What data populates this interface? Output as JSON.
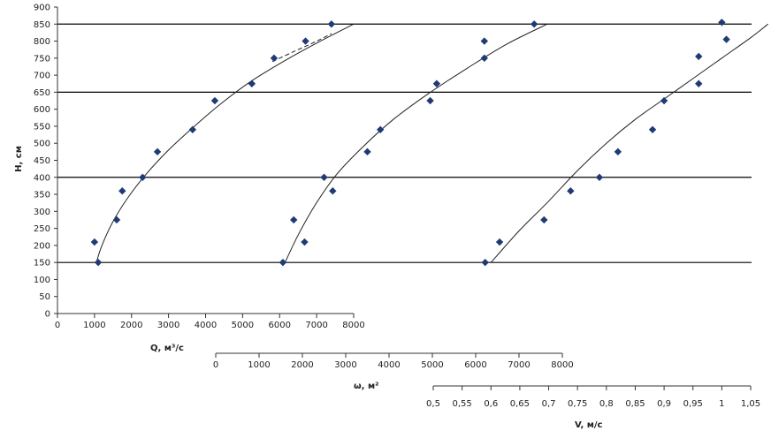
{
  "chart_data": {
    "type": "scatter",
    "y_axis": {
      "label": "H, см",
      "min": 0,
      "max": 900,
      "step": 50,
      "ticks": [
        "0",
        "50",
        "100",
        "150",
        "200",
        "250",
        "300",
        "350",
        "400",
        "450",
        "500",
        "550",
        "600",
        "650",
        "700",
        "750",
        "800",
        "850",
        "900"
      ]
    },
    "horizontal_levels": [
      150,
      400,
      650,
      850
    ],
    "x_axes": [
      {
        "key": "Q",
        "label": "Q, м³/с",
        "ticks": [
          "0",
          "1000",
          "2000",
          "3000",
          "4000",
          "5000",
          "6000",
          "7000",
          "8000"
        ],
        "tick_values": [
          0,
          1000,
          2000,
          3000,
          4000,
          5000,
          6000,
          7000,
          8000
        ]
      },
      {
        "key": "omega",
        "label": "ω, м²",
        "ticks": [
          "0",
          "1000",
          "2000",
          "3000",
          "4000",
          "5000",
          "6000",
          "7000",
          "8000"
        ],
        "tick_values": [
          0,
          1000,
          2000,
          3000,
          4000,
          5000,
          6000,
          7000,
          8000
        ]
      },
      {
        "key": "V",
        "label": "V, м/с",
        "ticks": [
          "0,5",
          "0,55",
          "0,6",
          "0,65",
          "0,7",
          "0,75",
          "0,8",
          "0,85",
          "0,9",
          "0,95",
          "1",
          "1,05"
        ],
        "tick_values": [
          0.5,
          0.55,
          0.6,
          0.65,
          0.7,
          0.75,
          0.8,
          0.85,
          0.9,
          0.95,
          1.0,
          1.05
        ]
      }
    ],
    "series": [
      {
        "axis": "Q",
        "points": [
          {
            "x": 1000,
            "y": 210
          },
          {
            "x": 1100,
            "y": 150
          },
          {
            "x": 1600,
            "y": 275
          },
          {
            "x": 1750,
            "y": 360
          },
          {
            "x": 2300,
            "y": 400
          },
          {
            "x": 2700,
            "y": 475
          },
          {
            "x": 3650,
            "y": 540
          },
          {
            "x": 4250,
            "y": 625
          },
          {
            "x": 5250,
            "y": 675
          },
          {
            "x": 5850,
            "y": 750
          },
          {
            "x": 6700,
            "y": 800
          },
          {
            "x": 7400,
            "y": 850
          }
        ],
        "curve": [
          {
            "x": 1050,
            "y": 150
          },
          {
            "x": 1200,
            "y": 200
          },
          {
            "x": 1500,
            "y": 270
          },
          {
            "x": 1900,
            "y": 340
          },
          {
            "x": 2400,
            "y": 410
          },
          {
            "x": 3000,
            "y": 480
          },
          {
            "x": 3700,
            "y": 550
          },
          {
            "x": 4400,
            "y": 615
          },
          {
            "x": 5200,
            "y": 680
          },
          {
            "x": 6100,
            "y": 740
          },
          {
            "x": 7100,
            "y": 800
          },
          {
            "x": 8000,
            "y": 850
          }
        ],
        "dashed_curve": [
          {
            "x": 5800,
            "y": 740
          },
          {
            "x": 6400,
            "y": 770
          },
          {
            "x": 7000,
            "y": 800
          },
          {
            "x": 7400,
            "y": 822
          }
        ]
      },
      {
        "axis": "omega",
        "points": [
          {
            "x": 1550,
            "y": 150
          },
          {
            "x": 1800,
            "y": 275
          },
          {
            "x": 2050,
            "y": 210
          },
          {
            "x": 2500,
            "y": 400
          },
          {
            "x": 2700,
            "y": 360
          },
          {
            "x": 3500,
            "y": 475
          },
          {
            "x": 3800,
            "y": 540
          },
          {
            "x": 4950,
            "y": 625
          },
          {
            "x": 5100,
            "y": 675
          },
          {
            "x": 6200,
            "y": 800
          },
          {
            "x": 6200,
            "y": 750
          },
          {
            "x": 7350,
            "y": 850
          }
        ],
        "curve": [
          {
            "x": 1600,
            "y": 150
          },
          {
            "x": 1900,
            "y": 230
          },
          {
            "x": 2300,
            "y": 320
          },
          {
            "x": 2800,
            "y": 410
          },
          {
            "x": 3400,
            "y": 490
          },
          {
            "x": 4100,
            "y": 570
          },
          {
            "x": 4900,
            "y": 645
          },
          {
            "x": 5800,
            "y": 720
          },
          {
            "x": 6700,
            "y": 790
          },
          {
            "x": 7650,
            "y": 850
          }
        ]
      },
      {
        "axis": "V",
        "points": [
          {
            "x": 0.59,
            "y": 150
          },
          {
            "x": 0.615,
            "y": 210
          },
          {
            "x": 0.692,
            "y": 275
          },
          {
            "x": 0.738,
            "y": 360
          },
          {
            "x": 0.788,
            "y": 400
          },
          {
            "x": 0.82,
            "y": 475
          },
          {
            "x": 0.88,
            "y": 540
          },
          {
            "x": 0.9,
            "y": 625
          },
          {
            "x": 0.96,
            "y": 675
          },
          {
            "x": 0.96,
            "y": 755
          },
          {
            "x": 1.0,
            "y": 855
          },
          {
            "x": 1.008,
            "y": 805
          }
        ],
        "curve": [
          {
            "x": 0.6,
            "y": 150
          },
          {
            "x": 0.65,
            "y": 245
          },
          {
            "x": 0.7,
            "y": 330
          },
          {
            "x": 0.75,
            "y": 420
          },
          {
            "x": 0.8,
            "y": 500
          },
          {
            "x": 0.85,
            "y": 570
          },
          {
            "x": 0.9,
            "y": 630
          },
          {
            "x": 0.95,
            "y": 690
          },
          {
            "x": 1.0,
            "y": 750
          },
          {
            "x": 1.05,
            "y": 810
          },
          {
            "x": 1.08,
            "y": 850
          }
        ]
      }
    ]
  }
}
